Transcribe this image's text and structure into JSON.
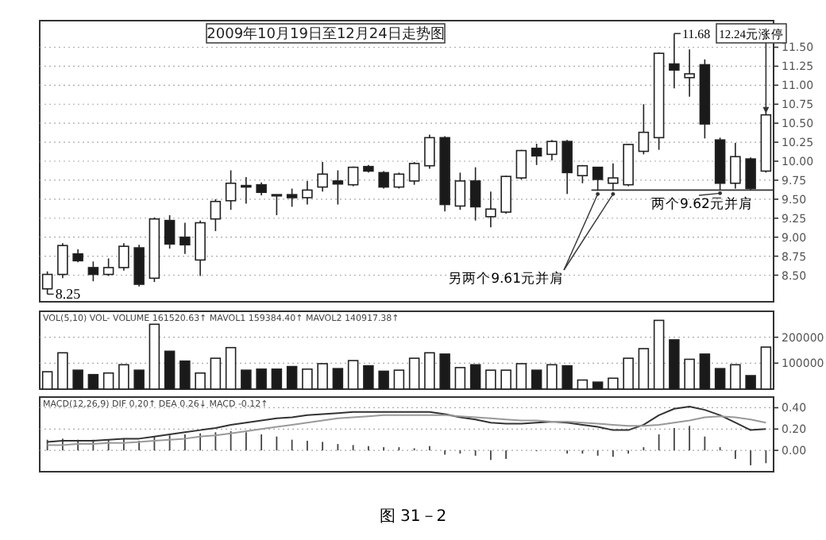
{
  "chart_data": [
    {
      "type": "candlestick",
      "title": "2009年10月19日至12月24日走势图",
      "grid": "y",
      "categories": [
        null,
        null,
        null,
        null,
        null,
        null,
        null,
        null,
        null,
        null,
        null,
        null,
        null,
        null,
        null,
        null,
        null,
        null,
        null,
        null,
        null,
        null,
        null,
        null,
        null,
        null,
        null,
        null,
        null,
        null,
        null,
        null,
        null,
        null,
        null,
        null,
        null,
        null,
        null,
        null,
        null,
        null,
        null,
        null,
        null,
        null,
        null,
        null
      ],
      "ohlc": [
        [
          8.32,
          8.55,
          8.25,
          8.51
        ],
        [
          8.51,
          8.92,
          8.46,
          8.89
        ],
        [
          8.78,
          8.84,
          8.67,
          8.69
        ],
        [
          8.6,
          8.68,
          8.42,
          8.51
        ],
        [
          8.51,
          8.72,
          8.49,
          8.6
        ],
        [
          8.6,
          8.92,
          8.56,
          8.88
        ],
        [
          8.86,
          8.9,
          8.35,
          8.38
        ],
        [
          8.46,
          9.26,
          8.41,
          9.24
        ],
        [
          9.22,
          9.29,
          8.85,
          8.91
        ],
        [
          9.0,
          9.19,
          8.78,
          8.9
        ],
        [
          8.7,
          9.22,
          8.49,
          9.19
        ],
        [
          9.24,
          9.5,
          9.08,
          9.47
        ],
        [
          9.48,
          9.88,
          9.36,
          9.71
        ],
        [
          9.68,
          9.79,
          9.44,
          9.66
        ],
        [
          9.69,
          9.72,
          9.55,
          9.59
        ],
        [
          9.56,
          9.56,
          9.29,
          9.55
        ],
        [
          9.56,
          9.64,
          9.4,
          9.52
        ],
        [
          9.52,
          9.74,
          9.43,
          9.62
        ],
        [
          9.66,
          9.99,
          9.6,
          9.83
        ],
        [
          9.74,
          9.88,
          9.43,
          9.7
        ],
        [
          9.69,
          9.93,
          9.67,
          9.92
        ],
        [
          9.93,
          9.95,
          9.85,
          9.87
        ],
        [
          9.85,
          9.87,
          9.64,
          9.66
        ],
        [
          9.66,
          9.85,
          9.64,
          9.83
        ],
        [
          9.74,
          9.99,
          9.69,
          9.97
        ],
        [
          9.94,
          10.35,
          9.9,
          10.31
        ],
        [
          10.31,
          10.33,
          9.34,
          9.43
        ],
        [
          9.41,
          9.85,
          9.36,
          9.74
        ],
        [
          9.74,
          9.92,
          9.22,
          9.4
        ],
        [
          9.27,
          9.6,
          9.13,
          9.37
        ],
        [
          9.33,
          9.81,
          9.31,
          9.8
        ],
        [
          9.78,
          10.15,
          9.76,
          10.14
        ],
        [
          10.17,
          10.23,
          9.95,
          10.07
        ],
        [
          10.09,
          10.28,
          10.01,
          10.26
        ],
        [
          10.26,
          10.28,
          9.57,
          9.85
        ],
        [
          9.81,
          9.95,
          9.71,
          9.94
        ],
        [
          9.92,
          9.92,
          9.61,
          9.76
        ],
        [
          9.71,
          9.97,
          9.61,
          9.78
        ],
        [
          9.69,
          10.23,
          9.67,
          10.22
        ],
        [
          10.13,
          10.75,
          10.09,
          10.38
        ],
        [
          10.31,
          11.43,
          10.15,
          11.42
        ],
        [
          11.28,
          11.68,
          10.96,
          11.2
        ],
        [
          11.1,
          11.47,
          10.85,
          11.15
        ],
        [
          11.27,
          11.34,
          10.3,
          10.49
        ],
        [
          10.28,
          10.31,
          9.62,
          9.71
        ],
        [
          9.71,
          10.24,
          9.64,
          10.06
        ],
        [
          10.03,
          10.05,
          9.62,
          9.64
        ],
        [
          9.87,
          10.65,
          9.85,
          10.61
        ]
      ],
      "ylim": [
        8.15,
        11.85
      ],
      "yticks": [
        {
          "value": 8.5,
          "label": "8.50"
        },
        {
          "value": 8.75,
          "label": "8.75"
        },
        {
          "value": 9.0,
          "label": "9.00"
        },
        {
          "value": 9.25,
          "label": "9.25"
        },
        {
          "value": 9.5,
          "label": "9.50"
        },
        {
          "value": 9.75,
          "label": "9.75"
        },
        {
          "value": 10.0,
          "label": "10.00"
        },
        {
          "value": 10.25,
          "label": "10.25"
        },
        {
          "value": 10.5,
          "label": "10.50"
        },
        {
          "value": 10.75,
          "label": "10.75"
        },
        {
          "value": 11.0,
          "label": "11.00"
        },
        {
          "value": 11.25,
          "label": "11.25"
        },
        {
          "value": 11.5,
          "label": "11.50"
        }
      ],
      "ref_lines": [
        {
          "axis": "y",
          "value": 9.62
        }
      ],
      "annotations": [
        "8.25",
        "11.68",
        "12.24元涨停",
        "两个9.62元并肩",
        "另两个9.61元并肩",
        "图 31－2"
      ]
    },
    {
      "type": "bar",
      "title": "VOL(5,10) VOL- VOLUME 161520.63↑ MAVOL1 159384.40↑ MAVOL2 140917.38↑",
      "categories": [
        null,
        null,
        null,
        null,
        null,
        null,
        null,
        null,
        null,
        null,
        null,
        null,
        null,
        null,
        null,
        null,
        null,
        null,
        null,
        null,
        null,
        null,
        null,
        null,
        null,
        null,
        null,
        null,
        null,
        null,
        null,
        null,
        null,
        null,
        null,
        null,
        null,
        null,
        null,
        null,
        null,
        null,
        null,
        null,
        null,
        null,
        null,
        null
      ],
      "values": [
        67000,
        140000,
        73000,
        56000,
        62000,
        94000,
        73000,
        250000,
        146000,
        108000,
        62000,
        119000,
        160000,
        73000,
        77000,
        77000,
        87000,
        77000,
        98000,
        79000,
        110000,
        90000,
        69000,
        73000,
        119000,
        140000,
        135000,
        83000,
        94000,
        73000,
        73000,
        98000,
        73000,
        94000,
        90000,
        35000,
        27000,
        42000,
        119000,
        156000,
        265000,
        190000,
        115000,
        135000,
        79000,
        94000,
        52000,
        162000
      ],
      "colors": [
        "#ffffff",
        "#ffffff",
        "#1a1a1a",
        "#1a1a1a",
        "#ffffff",
        "#ffffff",
        "#1a1a1a",
        "#ffffff",
        "#1a1a1a",
        "#1a1a1a",
        "#ffffff",
        "#ffffff",
        "#ffffff",
        "#1a1a1a",
        "#1a1a1a",
        "#1a1a1a",
        "#1a1a1a",
        "#ffffff",
        "#ffffff",
        "#1a1a1a",
        "#ffffff",
        "#1a1a1a",
        "#1a1a1a",
        "#ffffff",
        "#ffffff",
        "#ffffff",
        "#1a1a1a",
        "#ffffff",
        "#1a1a1a",
        "#ffffff",
        "#ffffff",
        "#ffffff",
        "#1a1a1a",
        "#ffffff",
        "#1a1a1a",
        "#ffffff",
        "#1a1a1a",
        "#ffffff",
        "#ffffff",
        "#ffffff",
        "#ffffff",
        "#1a1a1a",
        "#ffffff",
        "#1a1a1a",
        "#1a1a1a",
        "#ffffff",
        "#1a1a1a",
        "#ffffff"
      ],
      "ylim": [
        0,
        300000
      ],
      "yticks": [
        100000,
        200000
      ],
      "grid": "y"
    },
    {
      "type": "bar",
      "title": "MACD(12,26,9) DIF 0.20↑ DEA 0.26↓ MACD -0.12↑",
      "categories": [
        null,
        null,
        null,
        null,
        null,
        null,
        null,
        null,
        null,
        null,
        null,
        null,
        null,
        null,
        null,
        null,
        null,
        null,
        null,
        null,
        null,
        null,
        null,
        null,
        null,
        null,
        null,
        null,
        null,
        null,
        null,
        null,
        null,
        null,
        null,
        null,
        null,
        null,
        null,
        null,
        null,
        null,
        null,
        null,
        null,
        null,
        null,
        null
      ],
      "series": [
        {
          "type": "bar",
          "color": "#444444",
          "values": [
            0.1,
            0.11,
            0.1,
            0.1,
            0.1,
            0.11,
            0.09,
            0.13,
            0.14,
            0.15,
            0.16,
            0.17,
            0.18,
            0.17,
            0.15,
            0.13,
            0.1,
            0.09,
            0.08,
            0.06,
            0.05,
            0.04,
            0.03,
            0.03,
            0.02,
            0.04,
            -0.04,
            -0.03,
            -0.05,
            -0.09,
            -0.08,
            null,
            0.0,
            null,
            -0.03,
            -0.03,
            -0.05,
            -0.06,
            -0.03,
            0.03,
            0.15,
            0.21,
            0.23,
            0.13,
            0.03,
            -0.08,
            -0.14,
            -0.12
          ]
        },
        {
          "type": "line",
          "color": "#333333",
          "values": [
            0.08,
            0.09,
            0.09,
            0.09,
            0.1,
            0.11,
            0.11,
            0.13,
            0.15,
            0.17,
            0.19,
            0.21,
            0.24,
            0.26,
            0.28,
            0.3,
            0.31,
            0.33,
            0.34,
            0.35,
            0.36,
            0.36,
            0.36,
            0.36,
            0.36,
            0.36,
            0.34,
            0.31,
            0.29,
            0.26,
            0.25,
            0.25,
            0.26,
            0.27,
            0.26,
            0.24,
            0.22,
            0.19,
            0.19,
            0.24,
            0.33,
            0.39,
            0.41,
            0.38,
            0.33,
            0.26,
            0.19,
            0.2
          ]
        },
        {
          "type": "line",
          "color": "#999999",
          "values": [
            0.05,
            0.05,
            0.06,
            0.06,
            0.07,
            0.07,
            0.08,
            0.09,
            0.1,
            0.11,
            0.13,
            0.14,
            0.16,
            0.18,
            0.2,
            0.22,
            0.24,
            0.26,
            0.28,
            0.3,
            0.31,
            0.32,
            0.33,
            0.33,
            0.33,
            0.33,
            0.33,
            0.32,
            0.31,
            0.3,
            0.29,
            0.28,
            0.28,
            0.27,
            0.27,
            0.26,
            0.25,
            0.24,
            0.23,
            0.23,
            0.24,
            0.26,
            0.28,
            0.31,
            0.32,
            0.31,
            0.29,
            0.26
          ]
        }
      ],
      "ylim": [
        -0.2,
        0.5
      ],
      "yticks": [
        {
          "value": 0,
          "label": "0.00"
        },
        {
          "value": 0.2,
          "label": "0.20"
        },
        {
          "value": 0.4,
          "label": "0.40"
        }
      ],
      "grid": "y"
    }
  ]
}
